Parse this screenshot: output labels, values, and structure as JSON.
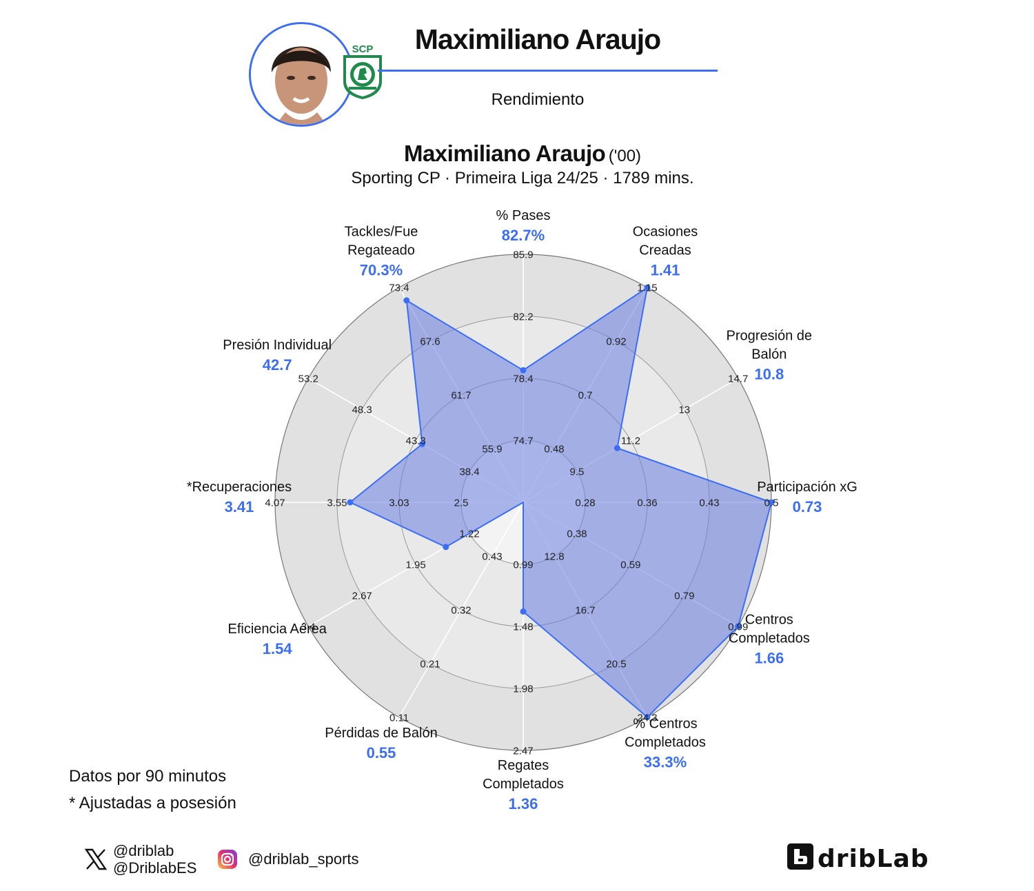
{
  "header": {
    "title": "Maximiliano Araujo",
    "subtitle": "Rendimiento",
    "club_logo_text": "SCP SPORTING PORTUGAL"
  },
  "player": {
    "name": "Maximiliano Araujo",
    "birth_year": "('00)",
    "context": "Sporting CP · Primeira Liga 24/25 · 1789 mins."
  },
  "colors": {
    "accent": "#3b6ef5",
    "fill": "rgba(104,125,224,0.55)",
    "ring_light": "#f3f3f3",
    "ring_mid": "#e9e9e9",
    "ring_inner": "#e1e1e1"
  },
  "chart_data": {
    "type": "radar",
    "levels": 4,
    "axes": [
      {
        "label_lines": [
          "% Pases"
        ],
        "value": "82.7%",
        "ticks": [
          "74.7",
          "78.4",
          "82.2",
          "85.9"
        ],
        "level": 2.13
      },
      {
        "label_lines": [
          "Ocasiones",
          "Creadas"
        ],
        "value": "1.41",
        "ticks": [
          "0.48",
          "0.7",
          "0.92",
          "1.15"
        ],
        "level": 4.0
      },
      {
        "label_lines": [
          "Progresión de",
          "Balón"
        ],
        "value": "10.8",
        "ticks": [
          "9.5",
          "11.2",
          "13",
          "14.7"
        ],
        "level": 1.75
      },
      {
        "label_lines": [
          "Participación xG"
        ],
        "value": "0.73",
        "ticks": [
          "0.28",
          "0.36",
          "0.43",
          "0.5"
        ],
        "level": 4.0
      },
      {
        "label_lines": [
          "Centros",
          "Completados"
        ],
        "value": "1.66",
        "ticks": [
          "0.38",
          "0.59",
          "0.79",
          "0.99"
        ],
        "level": 4.0
      },
      {
        "label_lines": [
          "% Centros",
          "Completados"
        ],
        "value": "33.3%",
        "ticks": [
          "12.8",
          "16.7",
          "20.5",
          "24.3"
        ],
        "level": 4.0
      },
      {
        "label_lines": [
          "Regates",
          "Completados"
        ],
        "value": "1.36",
        "ticks": [
          "0.99",
          "1.48",
          "1.98",
          "2.47"
        ],
        "level": 1.76
      },
      {
        "label_lines": [
          "Pérdidas de Balón"
        ],
        "value": "0.55",
        "ticks": [
          "0.43",
          "0.32",
          "0.21",
          "0.11"
        ],
        "level": 0.0
      },
      {
        "label_lines": [
          "Eficiencia Aérea"
        ],
        "value": "1.54",
        "ticks": [
          "1.22",
          "1.95",
          "2.67",
          "3.4"
        ],
        "level": 1.44
      },
      {
        "label_lines": [
          "*Recuperaciones"
        ],
        "value": "3.41",
        "ticks": [
          "2.5",
          "3.03",
          "3.55",
          "4.07"
        ],
        "level": 2.79
      },
      {
        "label_lines": [
          "Presión Individual"
        ],
        "value": "42.7",
        "ticks": [
          "38.4",
          "43.3",
          "48.3",
          "53.2"
        ],
        "level": 1.88
      },
      {
        "label_lines": [
          "Tackles/Fue",
          "Regateado"
        ],
        "value": "70.3%",
        "ticks": [
          "55.9",
          "61.7",
          "67.6",
          "73.4"
        ],
        "level": 3.76
      }
    ]
  },
  "footer": {
    "note_1": "Datos por 90 minutos",
    "note_2": "* Ajustadas a posesión",
    "x_handle_1": "@driblab",
    "x_handle_2": "@DriblabES",
    "instagram_handle": "@driblab_sports",
    "brand": "dribLab"
  }
}
